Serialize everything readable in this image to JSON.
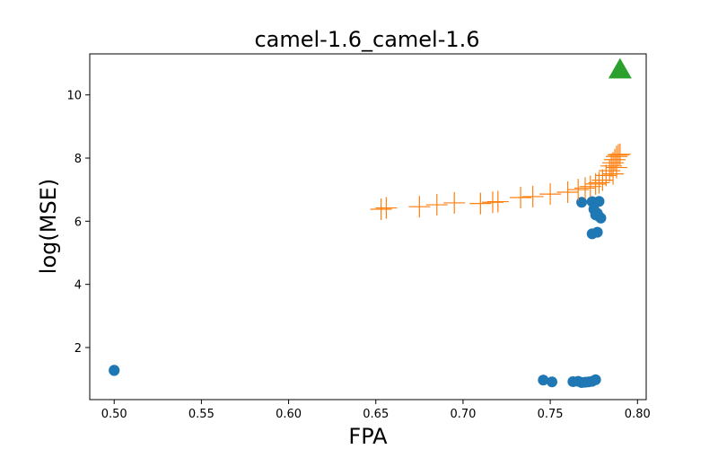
{
  "chart_data": {
    "type": "scatter",
    "title": "camel-1.6_camel-1.6",
    "xlabel": "FPA",
    "ylabel": "log(MSE)",
    "xlim": [
      0.486,
      0.805
    ],
    "ylim": [
      0.35,
      11.3
    ],
    "x_ticks": [
      0.5,
      0.55,
      0.6,
      0.65,
      0.7,
      0.75,
      0.8
    ],
    "x_tick_labels": [
      "0.50",
      "0.55",
      "0.60",
      "0.65",
      "0.70",
      "0.75",
      "0.80"
    ],
    "y_ticks": [
      2,
      4,
      6,
      8,
      10
    ],
    "y_tick_labels": [
      "2",
      "4",
      "6",
      "8",
      "10"
    ],
    "grid": false,
    "series": [
      {
        "marker": "circle",
        "color": "#1f77b4",
        "points": [
          [
            0.5,
            1.27
          ],
          [
            0.5,
            1.28
          ],
          [
            0.746,
            0.97
          ],
          [
            0.751,
            0.91
          ],
          [
            0.763,
            0.92
          ],
          [
            0.766,
            0.93
          ],
          [
            0.768,
            0.89
          ],
          [
            0.77,
            0.9
          ],
          [
            0.772,
            0.91
          ],
          [
            0.774,
            0.93
          ],
          [
            0.776,
            0.98
          ],
          [
            0.768,
            6.6
          ],
          [
            0.774,
            6.62
          ],
          [
            0.778,
            6.63
          ],
          [
            0.775,
            6.38
          ],
          [
            0.776,
            6.2
          ],
          [
            0.778,
            6.15
          ],
          [
            0.779,
            6.1
          ],
          [
            0.777,
            6.25
          ],
          [
            0.774,
            5.6
          ],
          [
            0.777,
            5.65
          ]
        ]
      },
      {
        "marker": "plus",
        "color": "#ff7f0e",
        "points": [
          [
            0.653,
            6.38
          ],
          [
            0.656,
            6.42
          ],
          [
            0.675,
            6.46
          ],
          [
            0.685,
            6.52
          ],
          [
            0.695,
            6.58
          ],
          [
            0.71,
            6.56
          ],
          [
            0.717,
            6.6
          ],
          [
            0.72,
            6.62
          ],
          [
            0.733,
            6.75
          ],
          [
            0.74,
            6.78
          ],
          [
            0.75,
            6.86
          ],
          [
            0.76,
            6.92
          ],
          [
            0.766,
            7.0
          ],
          [
            0.77,
            7.05
          ],
          [
            0.773,
            7.1
          ],
          [
            0.776,
            7.18
          ],
          [
            0.778,
            7.22
          ],
          [
            0.78,
            7.3
          ],
          [
            0.782,
            7.45
          ],
          [
            0.784,
            7.6
          ],
          [
            0.785,
            7.75
          ],
          [
            0.786,
            7.85
          ],
          [
            0.787,
            7.95
          ],
          [
            0.788,
            8.05
          ],
          [
            0.789,
            8.1
          ],
          [
            0.79,
            8.12
          ],
          [
            0.788,
            7.7
          ],
          [
            0.786,
            7.5
          ]
        ]
      },
      {
        "marker": "triangle",
        "color": "#2ca02c",
        "points": [
          [
            0.79,
            10.8
          ]
        ]
      }
    ]
  }
}
